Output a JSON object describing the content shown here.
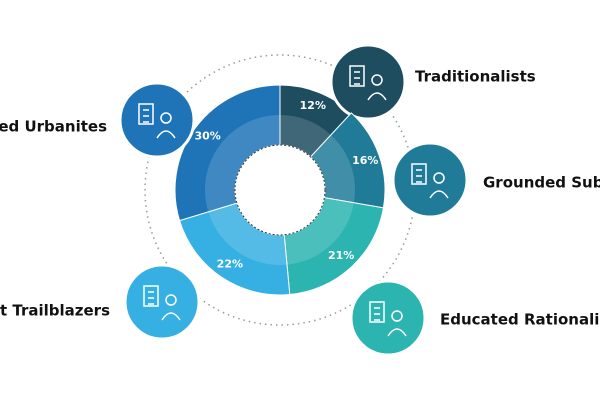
{
  "chart_data": {
    "type": "pie",
    "donut": true,
    "categories": [
      "Traditionalists",
      "Grounded Subur",
      "Educated Rationalists",
      "irst Trailblazers",
      "-Led Urbanites"
    ],
    "values": [
      12,
      16,
      21,
      22,
      30
    ],
    "value_labels": [
      "12%",
      "16%",
      "21%",
      "22%",
      "30%"
    ],
    "colors": [
      "#1e4d60",
      "#1f7b98",
      "#2bb4b0",
      "#36afe2",
      "#1f74b8"
    ]
  }
}
